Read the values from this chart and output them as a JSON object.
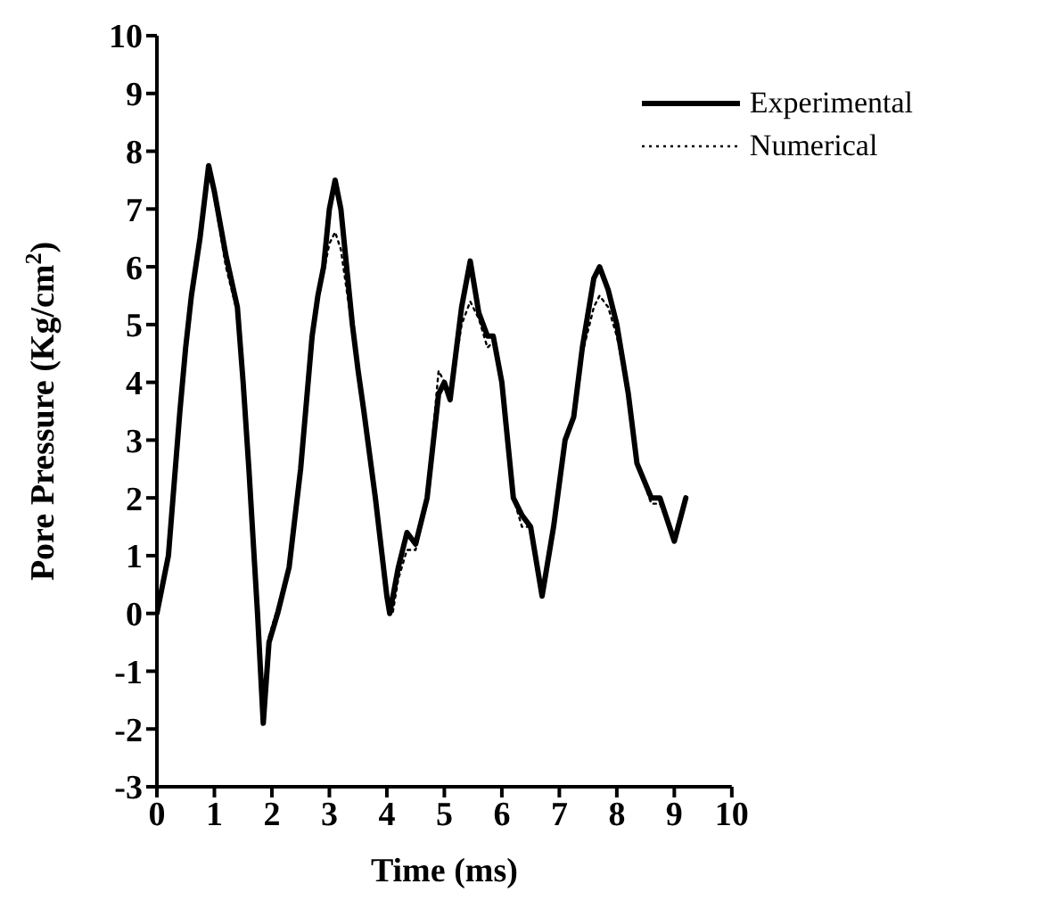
{
  "chart_data": {
    "type": "line",
    "xlabel": "Time (ms)",
    "ylabel": "Pore Pressure (Kg/cm$^{2}$)",
    "xlim": [
      0,
      10
    ],
    "xticks": [
      0,
      1,
      2,
      3,
      4,
      5,
      6,
      7,
      8,
      9,
      10
    ],
    "ylim": [
      -3,
      10
    ],
    "yticks": [
      -3,
      -2,
      -1,
      0,
      1,
      2,
      3,
      4,
      5,
      6,
      7,
      8,
      9,
      10
    ],
    "grid": false,
    "legend": "top right",
    "marker": "none",
    "series": [
      {
        "name": "Experimental",
        "color": "#000000",
        "line_style": "solid",
        "x": [
          0,
          0.2,
          0.4,
          0.5,
          0.6,
          0.75,
          0.9,
          1.0,
          1.2,
          1.4,
          1.5,
          1.6,
          1.75,
          1.85,
          1.95,
          2.1,
          2.3,
          2.5,
          2.7,
          2.8,
          2.9,
          3.0,
          3.1,
          3.2,
          3.4,
          3.5,
          3.6,
          3.8,
          4.0,
          4.05,
          4.2,
          4.35,
          4.5,
          4.7,
          4.9,
          5.0,
          5.1,
          5.3,
          5.45,
          5.6,
          5.75,
          5.85,
          6.0,
          6.2,
          6.35,
          6.5,
          6.7,
          6.9,
          7.1,
          7.25,
          7.4,
          7.6,
          7.7,
          7.85,
          8.0,
          8.2,
          8.35,
          8.6,
          8.75,
          9.0,
          9.2
        ],
        "values": [
          0,
          1,
          3.5,
          4.6,
          5.5,
          6.5,
          7.75,
          7.3,
          6.2,
          5.3,
          4.0,
          2.5,
          0,
          -1.9,
          -0.5,
          0,
          0.8,
          2.5,
          4.8,
          5.5,
          6.0,
          7.0,
          7.5,
          7.0,
          5.0,
          4.2,
          3.5,
          2.0,
          0.3,
          0,
          0.8,
          1.4,
          1.2,
          2.0,
          3.8,
          4.0,
          3.7,
          5.3,
          6.1,
          5.2,
          4.8,
          4.8,
          4.0,
          2.0,
          1.7,
          1.5,
          0.3,
          1.5,
          3.0,
          3.4,
          4.6,
          5.8,
          6.0,
          5.6,
          5.0,
          3.8,
          2.6,
          2.0,
          2.0,
          1.25,
          2.0
        ]
      },
      {
        "name": "Numerical",
        "color": "#000000",
        "line_style": "dotted",
        "x": [
          0,
          0.2,
          0.4,
          0.5,
          0.6,
          0.75,
          0.9,
          1.0,
          1.2,
          1.4,
          1.5,
          1.6,
          1.75,
          1.85,
          1.95,
          2.1,
          2.3,
          2.5,
          2.7,
          2.8,
          2.9,
          3.0,
          3.1,
          3.2,
          3.4,
          3.5,
          3.6,
          3.8,
          4.0,
          4.1,
          4.2,
          4.35,
          4.5,
          4.7,
          4.9,
          5.0,
          5.1,
          5.3,
          5.45,
          5.6,
          5.75,
          5.85,
          6.0,
          6.2,
          6.35,
          6.5,
          6.7,
          6.9,
          7.1,
          7.25,
          7.4,
          7.6,
          7.7,
          7.85,
          8.0,
          8.2,
          8.35,
          8.6,
          8.75,
          9.0,
          9.2
        ],
        "values": [
          0,
          1,
          3.5,
          4.6,
          5.5,
          6.5,
          7.7,
          7.2,
          6.0,
          5.2,
          4.0,
          2.5,
          0,
          -1.7,
          -0.4,
          0.1,
          0.8,
          2.5,
          4.8,
          5.4,
          5.9,
          6.4,
          6.6,
          6.3,
          4.9,
          4.2,
          3.5,
          2.0,
          0.3,
          0,
          0.6,
          1.1,
          1.1,
          2.0,
          4.2,
          4.0,
          3.7,
          5.0,
          5.4,
          5.1,
          4.6,
          4.7,
          4.0,
          2.0,
          1.5,
          1.5,
          0.3,
          1.5,
          3.0,
          3.4,
          4.5,
          5.3,
          5.5,
          5.3,
          4.8,
          3.8,
          2.6,
          1.9,
          1.9,
          1.25,
          2.0
        ]
      }
    ]
  }
}
